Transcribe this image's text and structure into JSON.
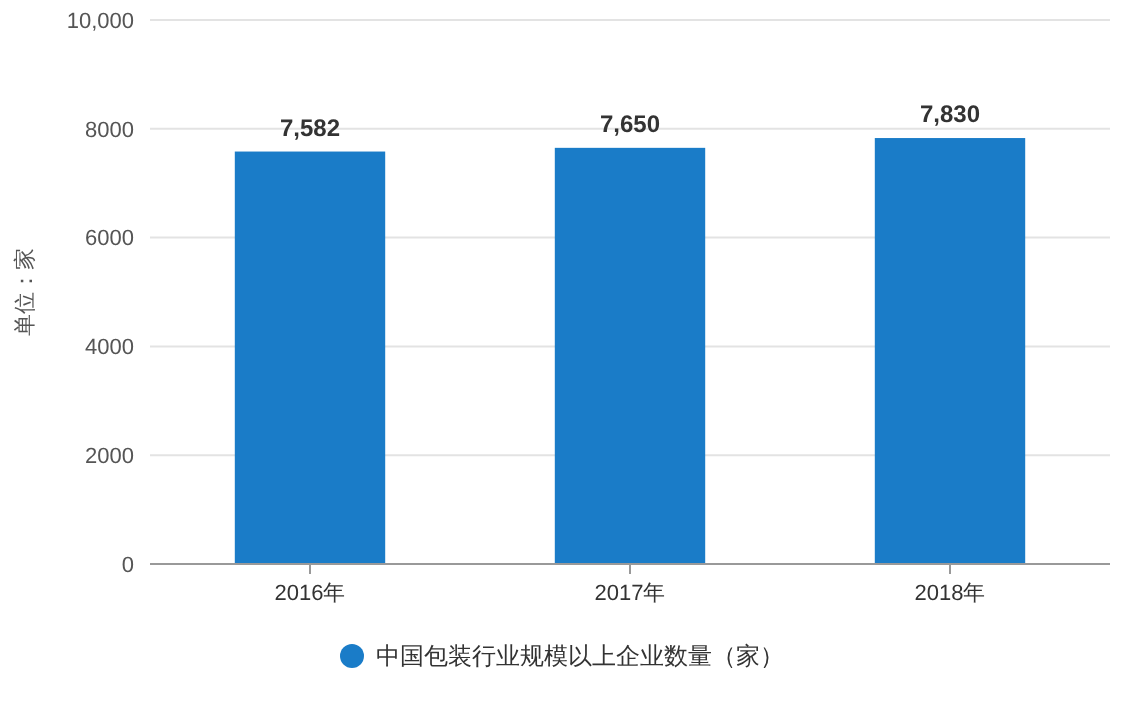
{
  "chart_data": {
    "type": "bar",
    "ylabel": "单位：家",
    "categories": [
      "2016年",
      "2017年",
      "2018年"
    ],
    "series": [
      {
        "name": "中国包装行业规模以上企业数量（家）",
        "color": "#1a7cc8",
        "values": [
          7582,
          7650,
          7830
        ]
      }
    ],
    "value_labels": [
      "7,582",
      "7,650",
      "7,830"
    ],
    "ylim": [
      0,
      10000
    ],
    "yticks": [
      0,
      2000,
      4000,
      6000,
      8000,
      {
        "value": 10000,
        "label": "10,000"
      }
    ],
    "grid": "y",
    "legend": "bottom"
  }
}
